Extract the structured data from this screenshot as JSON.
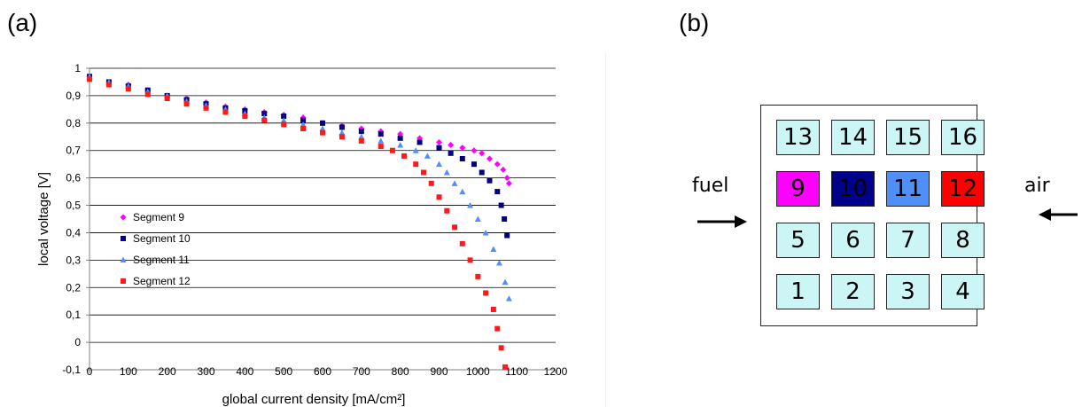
{
  "panel_labels": {
    "a": "(a)",
    "b": "(b)"
  },
  "chart_data": {
    "type": "scatter",
    "title": "",
    "xlabel": "global current density [mA/cm²]",
    "ylabel": "local voltage [V]",
    "xlim": [
      0,
      1200
    ],
    "ylim": [
      -0.1,
      1
    ],
    "xticks": [
      0,
      100,
      200,
      300,
      400,
      500,
      600,
      700,
      800,
      900,
      1000,
      1100,
      1200
    ],
    "yticks": [
      -0.1,
      0,
      0.1,
      0.2,
      0.3,
      0.4,
      0.5,
      0.6,
      0.7,
      0.8,
      0.9,
      1
    ],
    "ytick_labels": [
      "-0,1",
      "0",
      "0,1",
      "0,2",
      "0,3",
      "0,4",
      "0,5",
      "0,6",
      "0,7",
      "0,8",
      "0,9",
      "1"
    ],
    "grid": "horizontal",
    "legend_position": "left",
    "series": [
      {
        "name": "Segment 9",
        "color": "#ff00ff",
        "marker": "diamond",
        "x": [
          0,
          50,
          100,
          150,
          200,
          250,
          300,
          350,
          400,
          450,
          500,
          550,
          600,
          650,
          700,
          750,
          800,
          850,
          900,
          930,
          960,
          990,
          1010,
          1030,
          1050,
          1065,
          1075,
          1080
        ],
        "y": [
          0.97,
          0.95,
          0.94,
          0.92,
          0.9,
          0.89,
          0.875,
          0.86,
          0.85,
          0.84,
          0.83,
          0.82,
          0.8,
          0.79,
          0.78,
          0.77,
          0.76,
          0.745,
          0.73,
          0.72,
          0.71,
          0.7,
          0.69,
          0.67,
          0.65,
          0.63,
          0.6,
          0.58
        ]
      },
      {
        "name": "Segment 10",
        "color": "#000080",
        "marker": "square",
        "x": [
          0,
          50,
          100,
          150,
          200,
          250,
          300,
          350,
          400,
          450,
          500,
          550,
          600,
          650,
          700,
          750,
          800,
          850,
          900,
          930,
          960,
          990,
          1010,
          1030,
          1050,
          1060,
          1068,
          1075
        ],
        "y": [
          0.97,
          0.95,
          0.935,
          0.92,
          0.9,
          0.885,
          0.87,
          0.855,
          0.845,
          0.835,
          0.825,
          0.81,
          0.8,
          0.785,
          0.77,
          0.76,
          0.745,
          0.73,
          0.71,
          0.69,
          0.67,
          0.65,
          0.62,
          0.59,
          0.55,
          0.5,
          0.45,
          0.39
        ]
      },
      {
        "name": "Segment 11",
        "color": "#4f8ff7",
        "marker": "triangle",
        "x": [
          0,
          50,
          100,
          150,
          200,
          250,
          300,
          350,
          400,
          450,
          500,
          550,
          600,
          650,
          700,
          750,
          800,
          840,
          870,
          900,
          920,
          940,
          960,
          980,
          1000,
          1020,
          1040,
          1055,
          1070,
          1080
        ],
        "y": [
          0.97,
          0.95,
          0.935,
          0.915,
          0.9,
          0.88,
          0.865,
          0.85,
          0.835,
          0.82,
          0.81,
          0.795,
          0.78,
          0.765,
          0.75,
          0.735,
          0.72,
          0.7,
          0.68,
          0.65,
          0.62,
          0.58,
          0.55,
          0.5,
          0.45,
          0.4,
          0.34,
          0.29,
          0.22,
          0.16
        ]
      },
      {
        "name": "Segment 12",
        "color": "#ff1a1a",
        "marker": "square",
        "x": [
          0,
          50,
          100,
          150,
          200,
          250,
          300,
          350,
          400,
          450,
          500,
          550,
          600,
          650,
          700,
          750,
          780,
          810,
          840,
          860,
          880,
          900,
          920,
          940,
          960,
          980,
          1000,
          1020,
          1040,
          1050,
          1060,
          1070
        ],
        "y": [
          0.96,
          0.94,
          0.925,
          0.905,
          0.89,
          0.87,
          0.855,
          0.84,
          0.825,
          0.81,
          0.795,
          0.78,
          0.765,
          0.75,
          0.735,
          0.715,
          0.7,
          0.68,
          0.65,
          0.62,
          0.58,
          0.53,
          0.48,
          0.42,
          0.36,
          0.3,
          0.24,
          0.18,
          0.12,
          0.05,
          -0.02,
          -0.09
        ]
      }
    ]
  },
  "diagram": {
    "rows": [
      [
        {
          "label": "13",
          "fill": "#ccf5f5"
        },
        {
          "label": "14",
          "fill": "#ccf5f5"
        },
        {
          "label": "15",
          "fill": "#ccf5f5"
        },
        {
          "label": "16",
          "fill": "#ccf5f5"
        }
      ],
      [
        {
          "label": "9",
          "fill": "#ff00ff"
        },
        {
          "label": "10",
          "fill": "#00008b"
        },
        {
          "label": "11",
          "fill": "#4f8ff7"
        },
        {
          "label": "12",
          "fill": "#ff0000"
        }
      ],
      [
        {
          "label": "5",
          "fill": "#ccf5f5"
        },
        {
          "label": "6",
          "fill": "#ccf5f5"
        },
        {
          "label": "7",
          "fill": "#ccf5f5"
        },
        {
          "label": "8",
          "fill": "#ccf5f5"
        }
      ],
      [
        {
          "label": "1",
          "fill": "#ccf5f5"
        },
        {
          "label": "2",
          "fill": "#ccf5f5"
        },
        {
          "label": "3",
          "fill": "#ccf5f5"
        },
        {
          "label": "4",
          "fill": "#ccf5f5"
        }
      ]
    ],
    "fuel_label": "fuel",
    "air_label": "air"
  }
}
